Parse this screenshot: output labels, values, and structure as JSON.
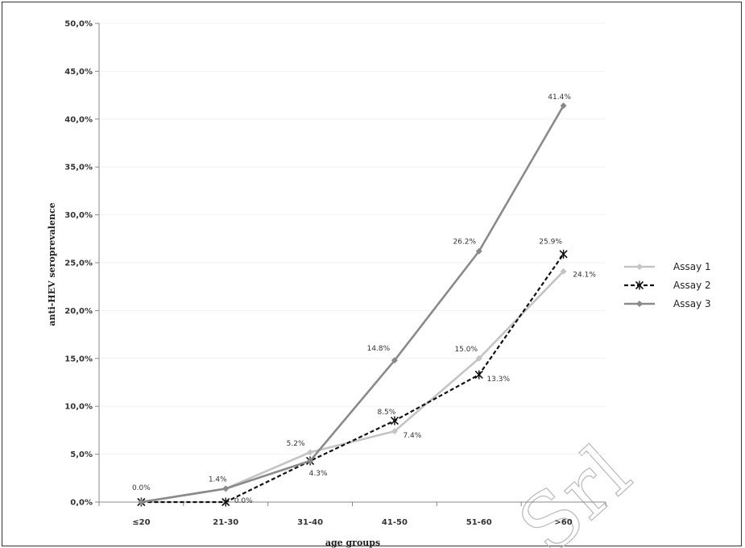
{
  "chart_data": {
    "type": "line",
    "categories": [
      "≤20",
      "21-30",
      "31-40",
      "41-50",
      "51-60",
      ">60"
    ],
    "xlabel": "age groups",
    "ylabel": "anti-HEV seroprevalence",
    "ylim": [
      0,
      50
    ],
    "yticks": [
      "0,0%",
      "5,0%",
      "10,0%",
      "15,0%",
      "20,0%",
      "25,0%",
      "30,0%",
      "35,0%",
      "40,0%",
      "45,0%",
      "50,0%"
    ],
    "grid": true,
    "legend_position": "right",
    "series": [
      {
        "name": "Assay 1",
        "values": [
          0.0,
          1.4,
          5.2,
          7.4,
          15.0,
          24.1
        ],
        "labels": [
          "",
          "",
          "5.2%",
          "7.4%",
          "15.0%",
          "24.1%"
        ],
        "color": "#c4c4c4",
        "marker": "diamond",
        "dash": "solid"
      },
      {
        "name": "Assay 2",
        "values": [
          0.0,
          0.0,
          4.3,
          8.5,
          13.3,
          25.9
        ],
        "labels": [
          "",
          "0.0%",
          "4.3%",
          "8.5%",
          "13.3%",
          "25.9%"
        ],
        "color": "#111111",
        "marker": "star",
        "dash": "dashed"
      },
      {
        "name": "Assay 3",
        "values": [
          0.0,
          1.4,
          4.3,
          14.8,
          26.2,
          41.4
        ],
        "labels": [
          "0.0%",
          "1.4%",
          "",
          "14.8%",
          "26.2%",
          "41.4%"
        ],
        "color": "#8a8a8a",
        "marker": "diamond",
        "dash": "solid"
      }
    ]
  },
  "watermark": "Srl"
}
